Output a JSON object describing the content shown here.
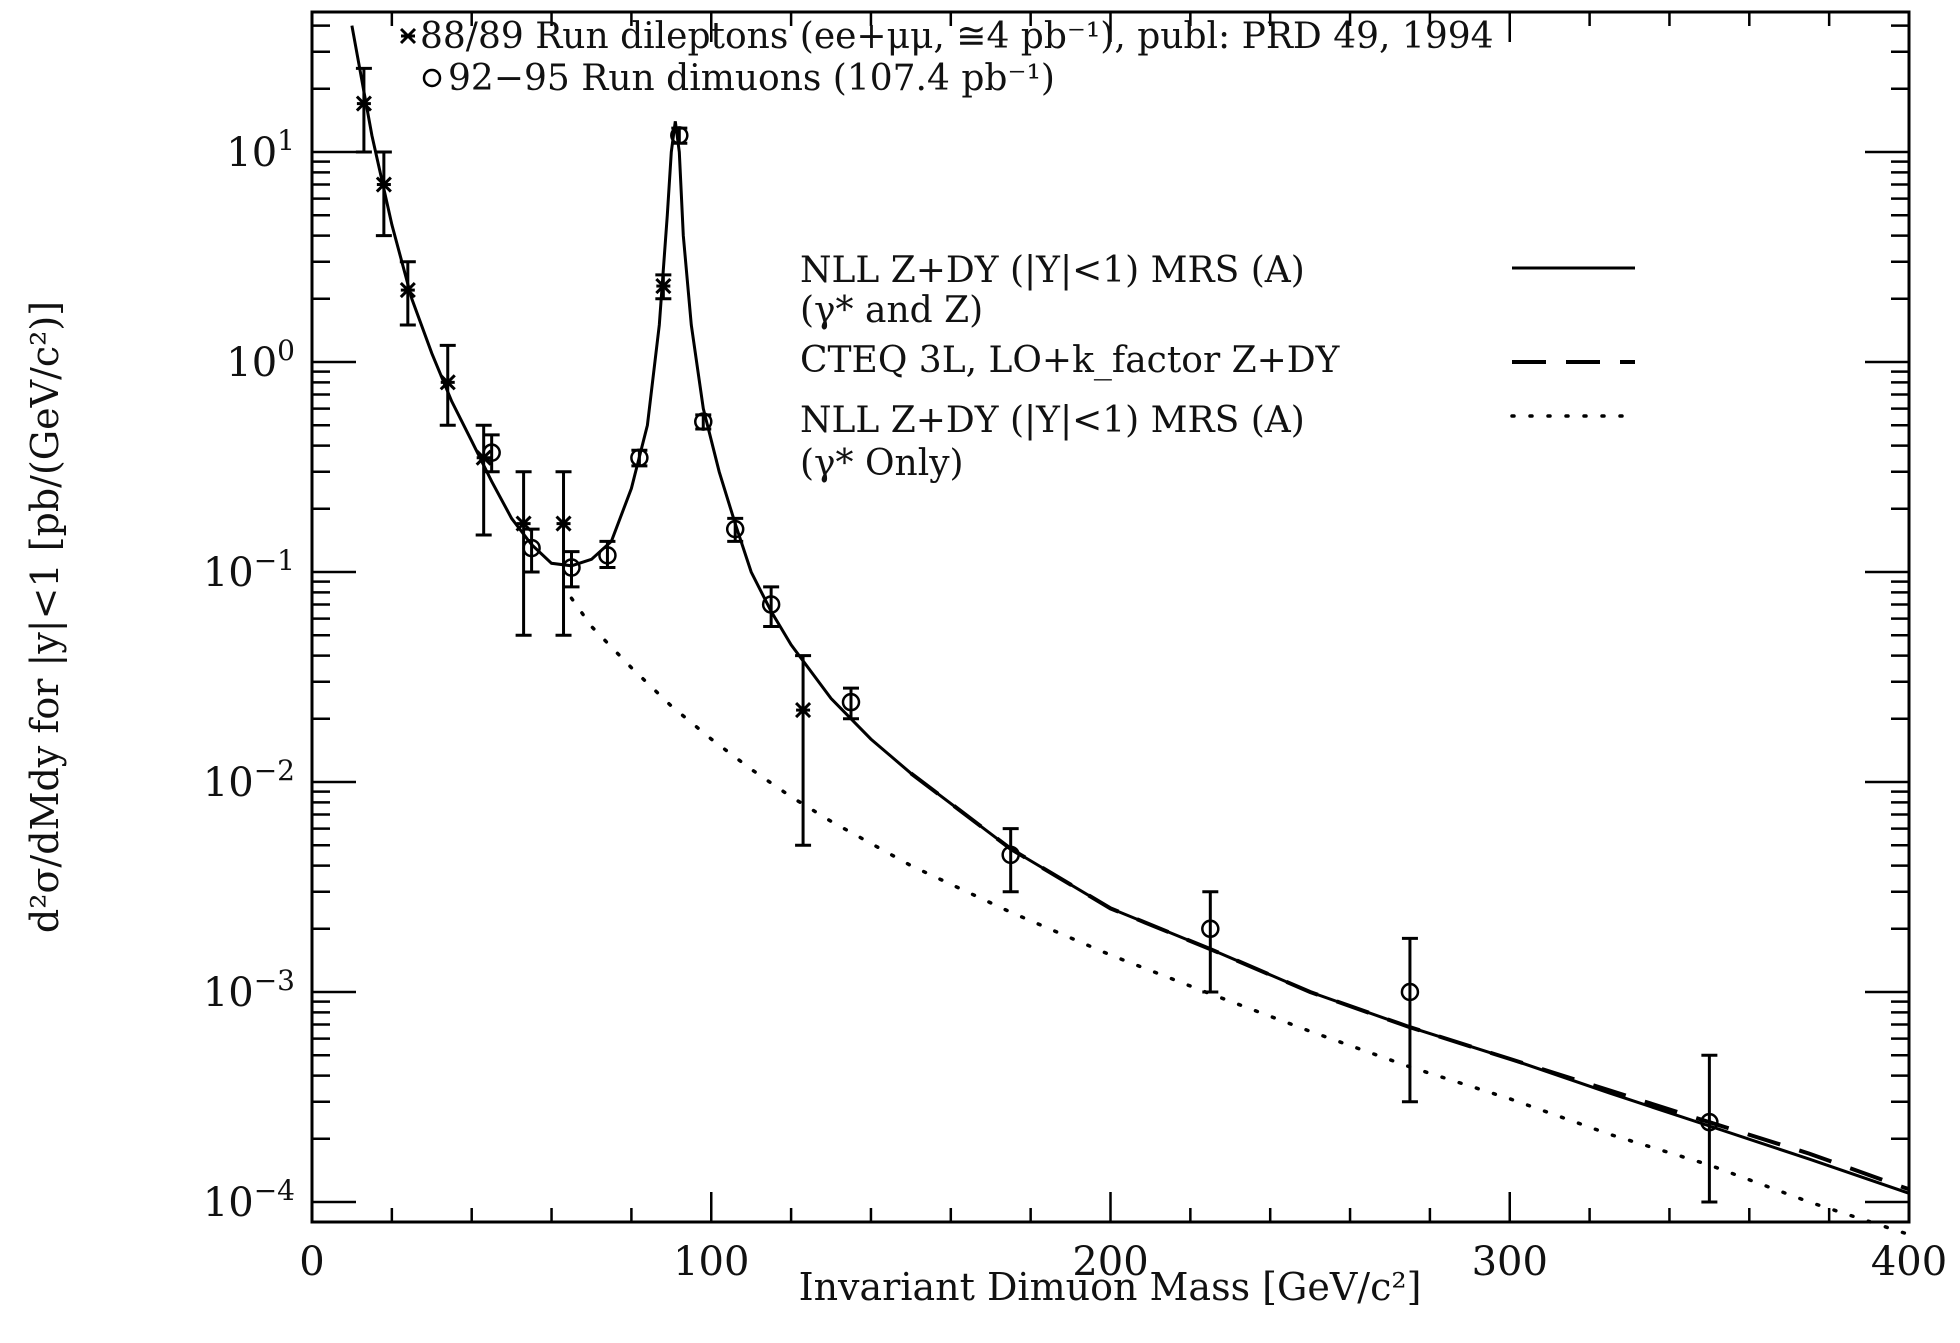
{
  "chart_data": {
    "type": "scatter",
    "title": "",
    "xlabel": "Invariant Dimuon Mass  [GeV/c²]",
    "ylabel": "d²σ/dMdy for |y|<1 [pb/(GeV/c²)]",
    "xlim": [
      0,
      400
    ],
    "ylim": [
      0.0001,
      40
    ],
    "yscale": "log",
    "x_ticks": [
      0,
      100,
      200,
      300,
      400
    ],
    "x_tick_labels": [
      "0",
      "100",
      "200",
      "300",
      "400"
    ],
    "y_ticks": [
      0.0001,
      0.001,
      0.01,
      0.1,
      1,
      10
    ],
    "y_tick_labels": [
      {
        "base": "10",
        "exp": "−4"
      },
      {
        "base": "10",
        "exp": "−3"
      },
      {
        "base": "10",
        "exp": "−2"
      },
      {
        "base": "10",
        "exp": "−1"
      },
      {
        "base": "10",
        "exp": "0"
      },
      {
        "base": "10",
        "exp": "1"
      }
    ],
    "grid": false,
    "series": [
      {
        "name": "88/89 Run dileptons (ee+μμ, ≅4 pb⁻¹), publ: PRD 49, 1994",
        "marker": "star",
        "points": [
          {
            "x": 13,
            "y": 17,
            "lo": 10,
            "hi": 25
          },
          {
            "x": 18,
            "y": 7,
            "lo": 4,
            "hi": 10
          },
          {
            "x": 24,
            "y": 2.2,
            "lo": 1.5,
            "hi": 3
          },
          {
            "x": 34,
            "y": 0.8,
            "lo": 0.5,
            "hi": 1.2
          },
          {
            "x": 43,
            "y": 0.35,
            "lo": 0.15,
            "hi": 0.5
          },
          {
            "x": 53,
            "y": 0.17,
            "lo": 0.05,
            "hi": 0.3
          },
          {
            "x": 63,
            "y": 0.17,
            "lo": 0.05,
            "hi": 0.3
          },
          {
            "x": 88,
            "y": 2.3,
            "lo": 2.0,
            "hi": 2.6
          },
          {
            "x": 123,
            "y": 0.022,
            "lo": 0.005,
            "hi": 0.04
          }
        ]
      },
      {
        "name": "92−95 Run dimuons (107.4 pb⁻¹)",
        "marker": "circle",
        "points": [
          {
            "x": 45,
            "y": 0.37,
            "lo": 0.3,
            "hi": 0.45
          },
          {
            "x": 55,
            "y": 0.13,
            "lo": 0.1,
            "hi": 0.16
          },
          {
            "x": 65,
            "y": 0.105,
            "lo": 0.085,
            "hi": 0.125
          },
          {
            "x": 74,
            "y": 0.12,
            "lo": 0.105,
            "hi": 0.14
          },
          {
            "x": 82,
            "y": 0.35,
            "lo": 0.32,
            "hi": 0.38
          },
          {
            "x": 92,
            "y": 12,
            "lo": 11,
            "hi": 13
          },
          {
            "x": 98,
            "y": 0.52,
            "lo": 0.48,
            "hi": 0.56
          },
          {
            "x": 106,
            "y": 0.16,
            "lo": 0.14,
            "hi": 0.18
          },
          {
            "x": 115,
            "y": 0.07,
            "lo": 0.055,
            "hi": 0.085
          },
          {
            "x": 135,
            "y": 0.024,
            "lo": 0.02,
            "hi": 0.028
          },
          {
            "x": 175,
            "y": 0.0045,
            "lo": 0.003,
            "hi": 0.006
          },
          {
            "x": 225,
            "y": 0.002,
            "lo": 0.001,
            "hi": 0.003
          },
          {
            "x": 275,
            "y": 0.001,
            "lo": 0.0003,
            "hi": 0.0018
          },
          {
            "x": 350,
            "y": 0.00024,
            "lo": 0.0001,
            "hi": 0.0005
          }
        ]
      }
    ],
    "curves": [
      {
        "name": "NLL Z+DY (|Y|<1) MRS (A) (γ* and Z)",
        "style": "solid",
        "points": [
          [
            10,
            40
          ],
          [
            15,
            12
          ],
          [
            20,
            4.5
          ],
          [
            25,
            2
          ],
          [
            30,
            1.1
          ],
          [
            35,
            0.65
          ],
          [
            40,
            0.42
          ],
          [
            45,
            0.27
          ],
          [
            50,
            0.18
          ],
          [
            55,
            0.135
          ],
          [
            60,
            0.11
          ],
          [
            65,
            0.107
          ],
          [
            70,
            0.115
          ],
          [
            75,
            0.14
          ],
          [
            80,
            0.25
          ],
          [
            84,
            0.5
          ],
          [
            87,
            1.5
          ],
          [
            89,
            5
          ],
          [
            90,
            10
          ],
          [
            91,
            14
          ],
          [
            92,
            10
          ],
          [
            93,
            4
          ],
          [
            95,
            1.5
          ],
          [
            98,
            0.6
          ],
          [
            102,
            0.3
          ],
          [
            106,
            0.17
          ],
          [
            110,
            0.1
          ],
          [
            115,
            0.065
          ],
          [
            120,
            0.045
          ],
          [
            130,
            0.025
          ],
          [
            140,
            0.016
          ],
          [
            150,
            0.011
          ],
          [
            175,
            0.0048
          ],
          [
            200,
            0.0025
          ],
          [
            225,
            0.0016
          ],
          [
            250,
            0.001
          ],
          [
            275,
            0.00068
          ],
          [
            300,
            0.00048
          ],
          [
            325,
            0.00033
          ],
          [
            350,
            0.00023
          ],
          [
            375,
            0.00016
          ],
          [
            400,
            0.00011
          ]
        ]
      },
      {
        "name": "CTEQ 3L, LO+k_factor Z+DY",
        "style": "dashed",
        "points": [
          [
            150,
            0.011
          ],
          [
            175,
            0.0048
          ],
          [
            200,
            0.0025
          ],
          [
            225,
            0.0016
          ],
          [
            250,
            0.001
          ],
          [
            275,
            0.00068
          ],
          [
            300,
            0.00048
          ],
          [
            325,
            0.00034
          ],
          [
            350,
            0.00024
          ],
          [
            375,
            0.00017
          ],
          [
            400,
            0.000115
          ]
        ]
      },
      {
        "name": "NLL Z+DY (|Y|<1) MRS (A) (γ* Only)",
        "style": "dotted",
        "points": [
          [
            65,
            0.075
          ],
          [
            70,
            0.055
          ],
          [
            80,
            0.035
          ],
          [
            90,
            0.023
          ],
          [
            100,
            0.016
          ],
          [
            110,
            0.0115
          ],
          [
            120,
            0.0085
          ],
          [
            130,
            0.0065
          ],
          [
            150,
            0.004
          ],
          [
            175,
            0.0024
          ],
          [
            200,
            0.0015
          ],
          [
            225,
            0.00098
          ],
          [
            250,
            0.00065
          ],
          [
            275,
            0.00044
          ],
          [
            300,
            0.00031
          ],
          [
            325,
            0.00021
          ],
          [
            350,
            0.00015
          ],
          [
            375,
            0.0001
          ],
          [
            400,
            7e-05
          ]
        ]
      }
    ],
    "legend_top_left": [
      "88/89 Run dileptons (ee+μμ, ≅4 pb⁻¹), publ: PRD 49, 1994",
      "92−95 Run dimuons (107.4 pb⁻¹)"
    ],
    "legend_right": [
      {
        "line1": "NLL Z+DY (|Y|<1) MRS (A)",
        "line2": "(γ* and Z)",
        "style": "solid"
      },
      {
        "line1": "CTEQ 3L, LO+k_factor Z+DY",
        "line2": "",
        "style": "dashed"
      },
      {
        "line1": "NLL Z+DY (|Y|<1) MRS (A)",
        "line2": "(γ* Only)",
        "style": "dotted"
      }
    ]
  }
}
